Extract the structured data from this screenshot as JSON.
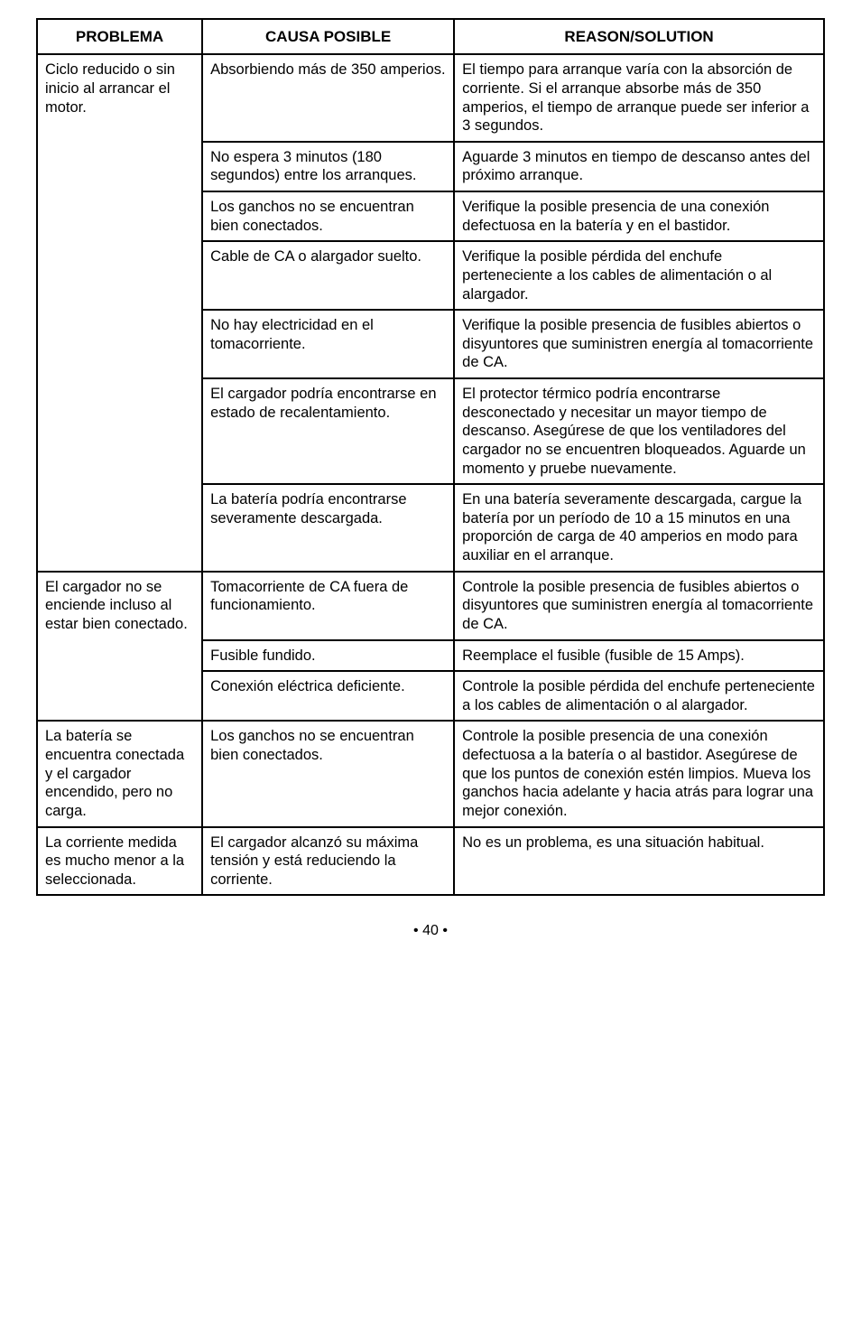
{
  "headers": {
    "col1": "PROBLEMA",
    "col2": "CAUSA POSIBLE",
    "col3": "REASON/SOLUTION"
  },
  "rows": [
    {
      "problem": "Ciclo reducido o sin inicio al arrancar el motor.",
      "problem_rowspan": 7,
      "cause": "Absorbiendo más de 350 amperios.",
      "solution": "El tiempo para arranque varía con la absorción de corriente. Si el arranque absorbe más de 350 amperios, el tiempo de arranque puede ser inferior a 3 segundos."
    },
    {
      "cause": "No espera 3 minutos (180 segundos) entre los arranques.",
      "solution": "Aguarde 3 minutos en tiempo de descanso antes del próximo arranque."
    },
    {
      "cause": "Los ganchos no se encuentran bien conectados.",
      "solution": "Verifique la posible presencia de una conexión defectuosa en la batería y en el bastidor."
    },
    {
      "cause": "Cable de CA o alargador suelto.",
      "solution": "Verifique la posible pérdida del enchufe perteneciente a los cables de alimentación o al alargador."
    },
    {
      "cause": "No hay electricidad en el tomacorriente.",
      "solution": "Verifique la posible presencia de fusibles abiertos o disyuntores que suministren energía al tomacorriente de CA."
    },
    {
      "cause": "El cargador podría encontrarse en estado de recalentamiento.",
      "solution": "El protector térmico podría encontrarse desconectado y necesitar un mayor tiempo de descanso. Asegúrese de que los ventiladores del cargador no se encuentren bloqueados. Aguarde un momento y pruebe nuevamente."
    },
    {
      "cause": "La batería podría encontrarse severamente descargada.",
      "solution": "En una batería severamente descargada, cargue la batería por un período de 10 a 15 minutos en una proporción de carga de 40 amperios en modo para auxiliar en el arranque."
    },
    {
      "problem": "El cargador no se enciende incluso al estar bien conectado.",
      "problem_rowspan": 3,
      "cause": "Tomacorriente de CA fuera de funcionamiento.",
      "solution": "Controle la posible presencia de fusibles abiertos o disyuntores que suministren energía al tomacorriente de CA."
    },
    {
      "cause": "Fusible fundido.",
      "solution": "Reemplace el fusible (fusible de 15 Amps)."
    },
    {
      "cause": "Conexión eléctrica deficiente.",
      "solution": "Controle la posible pérdida del enchufe perteneciente a los cables de alimentación o al alargador."
    },
    {
      "problem": "La batería se encuentra conectada y el cargador encendido, pero no carga.",
      "problem_rowspan": 1,
      "cause": "Los ganchos no se encuentran bien conectados.",
      "solution": "Controle la posible presencia de una conexión defectuosa a la batería o al bastidor. Asegúrese de que los puntos de conexión estén limpios. Mueva los ganchos hacia adelante y hacia atrás para lograr una mejor conexión."
    },
    {
      "problem": "La corriente medida es mucho menor a la seleccionada.",
      "problem_rowspan": 1,
      "cause": "El cargador alcanzó su máxima tensión y está reduciendo la corriente.",
      "solution": "No es un problema, es una situación habitual."
    }
  ],
  "page_number": "• 40 •"
}
